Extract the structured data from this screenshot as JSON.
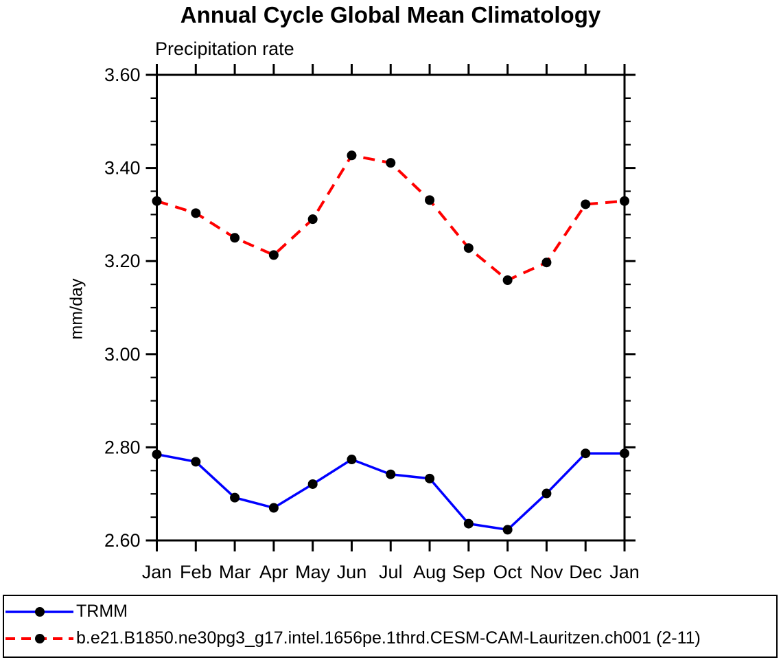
{
  "chart_data": {
    "type": "line",
    "title": "Annual Cycle Global Mean Climatology",
    "subtitle": "Precipitation rate",
    "ylabel": "mm/day",
    "xlabel": "",
    "categories": [
      "Jan",
      "Feb",
      "Mar",
      "Apr",
      "May",
      "Jun",
      "Jul",
      "Aug",
      "Sep",
      "Oct",
      "Nov",
      "Dec",
      "Jan"
    ],
    "ylim": [
      2.6,
      3.6
    ],
    "ytick_step": 0.2,
    "yminor_step": 0.05,
    "ytick_labels": [
      "2.60",
      "2.80",
      "3.00",
      "3.20",
      "3.40",
      "3.60"
    ],
    "grid": false,
    "legend_position": "bottom",
    "marker": {
      "shape": "circle",
      "color": "#000000",
      "radius": 7
    },
    "axis_color": "#000000",
    "series": [
      {
        "name": "TRMM",
        "color": "#0000ff",
        "style": "solid",
        "values": [
          2.785,
          2.769,
          2.692,
          2.67,
          2.721,
          2.774,
          2.742,
          2.733,
          2.636,
          2.623,
          2.701,
          2.787,
          2.787
        ]
      },
      {
        "name": "b.e21.B1850.ne30pg3_g17.intel.1656pe.1thrd.CESM-CAM-Lauritzen.ch001 (2-11)",
        "color": "#ff0000",
        "style": "dashed",
        "values": [
          3.329,
          3.303,
          3.25,
          3.213,
          3.29,
          3.427,
          3.411,
          3.331,
          3.228,
          3.159,
          3.197,
          3.322,
          3.329
        ]
      }
    ]
  }
}
